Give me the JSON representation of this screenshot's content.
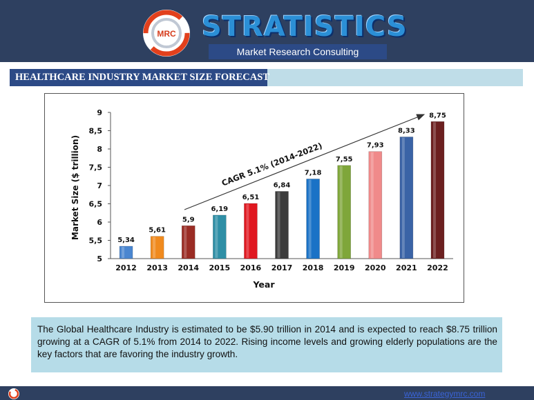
{
  "header": {
    "brand": "STRATISTICS",
    "tagline": "Market Research Consulting",
    "logo_text": "MRC"
  },
  "section_title": "HEALTHCARE INDUSTRY MARKET SIZE FORECAST",
  "chart_data": {
    "type": "bar",
    "categories": [
      "2012",
      "2013",
      "2014",
      "2015",
      "2016",
      "2017",
      "2018",
      "2019",
      "2020",
      "2021",
      "2022"
    ],
    "values": [
      5.34,
      5.61,
      5.9,
      6.19,
      6.51,
      6.84,
      7.18,
      7.55,
      7.93,
      8.33,
      8.75
    ],
    "value_labels": [
      "5,34",
      "5,61",
      "5,9",
      "6,19",
      "6,51",
      "6,84",
      "7,18",
      "7,55",
      "7,93",
      "8,33",
      "8,75"
    ],
    "bar_colors": [
      "#4a86d0",
      "#f08a1e",
      "#9a2c24",
      "#2f8fa6",
      "#e01820",
      "#3c3c3c",
      "#1a72c6",
      "#7fa63a",
      "#f08a8a",
      "#3a63a6",
      "#6c2020"
    ],
    "xlabel": "Year",
    "ylabel": "Market Size ($ trillion)",
    "ylim": [
      5,
      9
    ],
    "yticks": [
      "5",
      "5,5",
      "6",
      "6,5",
      "7",
      "7,5",
      "8",
      "8,5",
      "9"
    ],
    "grid": false,
    "annotation": "CAGR 5.1% (2014-2022)"
  },
  "summary": "The Global Healthcare Industry is estimated to be $5.90 trillion in 2014 and is expected to reach $8.75 trillion growing at a CAGR of 5.1% from 2014 to 2022. Rising income levels and growing elderly populations are the key factors that are favoring the industry growth.",
  "footer": {
    "link": "www.strategymrc.com"
  }
}
